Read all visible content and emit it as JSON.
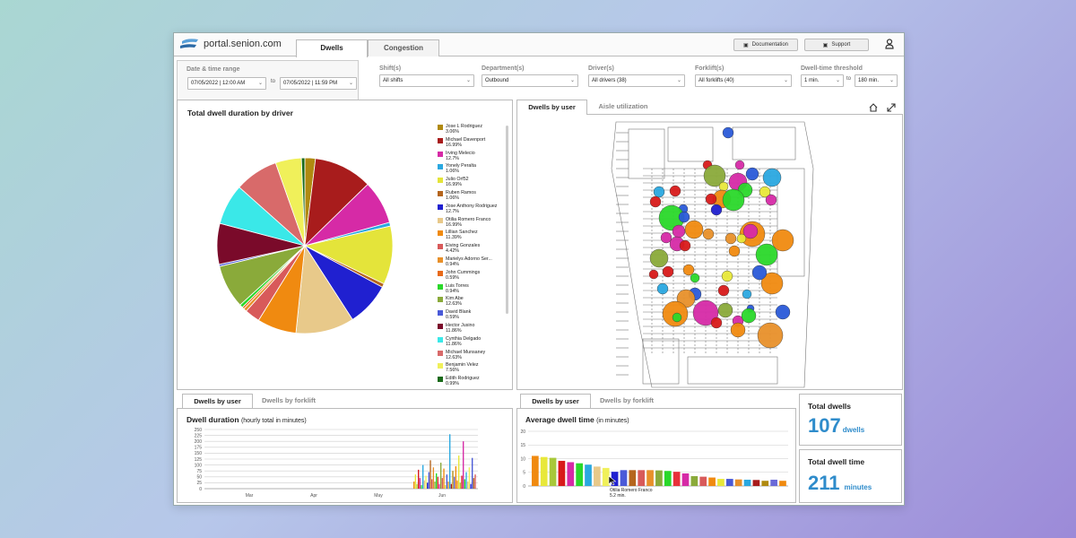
{
  "header": {
    "logo_text": "portal.senion.com",
    "tabs": [
      {
        "label": "Dwells"
      },
      {
        "label": "Congestion"
      }
    ],
    "documentation_label": "Documentation",
    "support_label": "Support"
  },
  "filters": {
    "date_range_label": "Date & time range",
    "start_date": "07/05/2022",
    "start_time": "12:00 AM",
    "to_label": "to",
    "end_date": "07/05/2022",
    "end_time": "11:59 PM",
    "shifts_label": "Shift(s)",
    "shifts_value": "All shifts",
    "department_label": "Department(s)",
    "department_value": "Outbound",
    "drivers_label": "Driver(s)",
    "drivers_value": "All drivers (38)",
    "forklifts_label": "Forklift(s)",
    "forklifts_value": "All forklifts (40)",
    "threshold_label": "Dwell-time threshold",
    "threshold_min": "1 min.",
    "threshold_to": "to",
    "threshold_max": "180 min."
  },
  "pie_panel": {
    "title": "Total dwell duration by driver",
    "legend": [
      {
        "name": "Jose L Rodriguez",
        "value": "3.06%",
        "color": "#b08a10"
      },
      {
        "name": "Michael Davenport",
        "value": "16.99%",
        "color": "#a81c1c"
      },
      {
        "name": "Irving Melecio",
        "value": "12.7%",
        "color": "#d62aa6"
      },
      {
        "name": "Yonely Peralta",
        "value": "1.06%",
        "color": "#2aa8e0"
      },
      {
        "name": "Julio Orf52",
        "value": "16.99%",
        "color": "#e4e43a"
      },
      {
        "name": "Ruben Ramos",
        "value": "1.06%",
        "color": "#b5651d"
      },
      {
        "name": "Jose Anthony Rodriguez",
        "value": "12.7%",
        "color": "#2020d0"
      },
      {
        "name": "Otilia Romero Franco",
        "value": "16.99%",
        "color": "#e8c98a"
      },
      {
        "name": "Lillian Sanchez",
        "value": "11.39%",
        "color": "#f08a10"
      },
      {
        "name": "Eiving Gonzales",
        "value": "4.42%",
        "color": "#d85a5a"
      },
      {
        "name": "Marielys Adorno Ser...",
        "value": "0.94%",
        "color": "#e8902a"
      },
      {
        "name": "John Cummings",
        "value": "0.59%",
        "color": "#e86a1a"
      },
      {
        "name": "Luis Torres",
        "value": "0.94%",
        "color": "#2ad82a"
      },
      {
        "name": "Kim Abe",
        "value": "12.63%",
        "color": "#8aaa3a"
      },
      {
        "name": "David Blank",
        "value": "0.59%",
        "color": "#4a5ad8"
      },
      {
        "name": "Hector Jusino",
        "value": "11.86%",
        "color": "#7a0a2a"
      },
      {
        "name": "Cynthia Delgado",
        "value": "11.86%",
        "color": "#3ae8e8"
      },
      {
        "name": "Michael Munsaney",
        "value": "12.63%",
        "color": "#d86a6a"
      },
      {
        "name": "Benjamin Velez",
        "value": "7.56%",
        "color": "#f0f05a"
      },
      {
        "name": "Edith Rodriguez",
        "value": "0.99%",
        "color": "#1a6a1a"
      }
    ]
  },
  "map_panel": {
    "tabs": [
      {
        "label": "Dwells by user"
      },
      {
        "label": "Aisle utilization"
      }
    ]
  },
  "duration_panel": {
    "tabs": [
      {
        "label": "Dwells by user"
      },
      {
        "label": "Dwells by forklift"
      }
    ],
    "title": "Dwell duration",
    "subtitle": "(hourly total in minutes)"
  },
  "avg_panel": {
    "tabs": [
      {
        "label": "Dwells by user"
      },
      {
        "label": "Dwells by forklift"
      }
    ],
    "title": "Average dwell time",
    "subtitle": "(in minutes)",
    "tooltip_name": "Otilia Romero Franco",
    "tooltip_value": "5.2 min."
  },
  "stats": {
    "total_dwells_label": "Total dwells",
    "total_dwells_value": "107",
    "total_dwells_unit": "dwells",
    "total_time_label": "Total dwell time",
    "total_time_value": "211",
    "total_time_unit": "minutes"
  },
  "chart_data": [
    {
      "type": "pie",
      "title": "Total dwell duration by driver",
      "slices": [
        {
          "label": "Jose L Rodriguez",
          "value": 3.06
        },
        {
          "label": "Michael Davenport",
          "value": 16.99
        },
        {
          "label": "Irving Melecio",
          "value": 12.7
        },
        {
          "label": "Yonely Peralta",
          "value": 1.06
        },
        {
          "label": "Julio Orf52",
          "value": 16.99
        },
        {
          "label": "Ruben Ramos",
          "value": 1.06
        },
        {
          "label": "Jose Anthony Rodriguez",
          "value": 12.7
        },
        {
          "label": "Otilia Romero Franco",
          "value": 16.99
        },
        {
          "label": "Lillian Sanchez",
          "value": 11.39
        },
        {
          "label": "Eiving Gonzales",
          "value": 4.42
        },
        {
          "label": "Marielys Adorno Ser...",
          "value": 0.94
        },
        {
          "label": "John Cummings",
          "value": 0.59
        },
        {
          "label": "Luis Torres",
          "value": 0.94
        },
        {
          "label": "Kim Abe",
          "value": 12.63
        },
        {
          "label": "David Blank",
          "value": 0.59
        },
        {
          "label": "Hector Jusino",
          "value": 11.86
        },
        {
          "label": "Cynthia Delgado",
          "value": 11.86
        },
        {
          "label": "Michael Munsaney",
          "value": 12.63
        },
        {
          "label": "Benjamin Velez",
          "value": 7.56
        },
        {
          "label": "Edith Rodriguez",
          "value": 0.99
        }
      ]
    },
    {
      "type": "bar",
      "title": "Dwell duration",
      "subtitle": "(hourly total in minutes)",
      "x_tick_labels": [
        "Mar",
        "Apr",
        "May",
        "Jun"
      ],
      "ylim": [
        0,
        250
      ],
      "y_ticks": [
        0,
        25,
        50,
        75,
        100,
        125,
        150,
        175,
        200,
        225,
        250
      ],
      "values": [
        30,
        60,
        20,
        80,
        45,
        15,
        100,
        35,
        55,
        25,
        70,
        120,
        40,
        90,
        30,
        65,
        50,
        20,
        110,
        45,
        85,
        15,
        60,
        30,
        230,
        20,
        75,
        50,
        95,
        35,
        140,
        25,
        55,
        200,
        40,
        70,
        30,
        90,
        20,
        130,
        45,
        60
      ]
    },
    {
      "type": "bar",
      "title": "Average dwell time",
      "subtitle": "(in minutes)",
      "ylim": [
        0,
        20
      ],
      "y_ticks": [
        0,
        5,
        10,
        15,
        20
      ],
      "values": [
        11,
        10.6,
        10.3,
        9.2,
        8.7,
        8.3,
        7.8,
        7.1,
        6.6,
        5.2,
        5.8,
        5.8,
        5.8,
        5.8,
        5.7,
        5.5,
        5.2,
        4.6,
        3.6,
        3.4,
        3.1,
        2.6,
        2.6,
        2.4,
        2.3,
        2.2,
        1.9,
        2.3,
        1.9
      ]
    }
  ],
  "avg_bar_colors": [
    "#f08a10",
    "#e8e83a",
    "#a8c83a",
    "#d81a1a",
    "#d62aa6",
    "#2ad82a",
    "#2aa8e0",
    "#e8c98a",
    "#f0f05a",
    "#2020d0",
    "#4a5ad8",
    "#b5651d",
    "#d85a5a",
    "#e8902a",
    "#8aaa3a",
    "#2ad82a",
    "#e8303a",
    "#d62aa6",
    "#8aaa3a",
    "#d85a5a",
    "#f08a10",
    "#e8e83a",
    "#4a5ad8",
    "#e8902a",
    "#2aa8e0",
    "#a81c1c",
    "#b08a10",
    "#6a6ad8",
    "#f08a10"
  ]
}
